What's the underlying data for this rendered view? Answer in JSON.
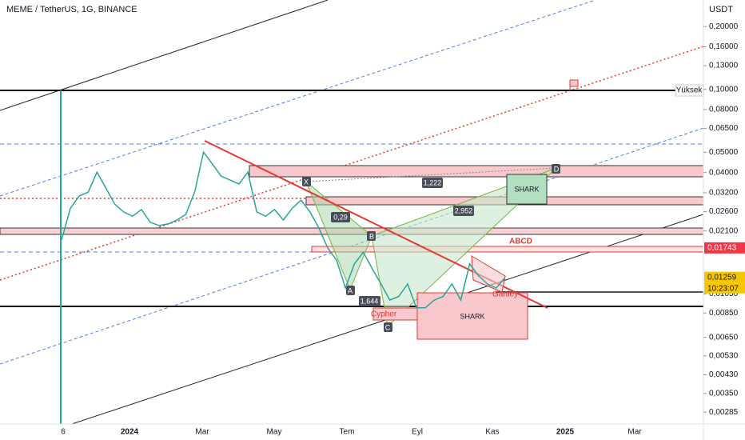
{
  "header": {
    "title": "MEME / TetherUS, 1G, BINANCE",
    "currency": "USDT"
  },
  "chart_data": {
    "type": "line",
    "log_scale": true,
    "ylim": [
      0.0025,
      0.268
    ],
    "yticks": [
      {
        "value": 0.2,
        "label": "0,20000"
      },
      {
        "value": 0.16,
        "label": "0,16000"
      },
      {
        "value": 0.13,
        "label": "0,13000"
      },
      {
        "value": 0.1,
        "label": "0,10000"
      },
      {
        "value": 0.08,
        "label": "0,08000"
      },
      {
        "value": 0.065,
        "label": "0,06500"
      },
      {
        "value": 0.05,
        "label": "0,05000"
      },
      {
        "value": 0.04,
        "label": "0,04000"
      },
      {
        "value": 0.032,
        "label": "0,03200"
      },
      {
        "value": 0.026,
        "label": "0,02600"
      },
      {
        "value": 0.021,
        "label": "0,02100"
      },
      {
        "value": 0.0105,
        "label": "0,01050"
      },
      {
        "value": 0.0085,
        "label": "0,00850"
      },
      {
        "value": 0.0065,
        "label": "0,00650"
      },
      {
        "value": 0.0053,
        "label": "0,00530"
      },
      {
        "value": 0.0043,
        "label": "0,00430"
      },
      {
        "value": 0.0035,
        "label": "0,00350"
      },
      {
        "value": 0.00285,
        "label": "0,00285"
      }
    ],
    "xtick_labels": [
      "6",
      "2024",
      "Mar",
      "May",
      "Tem",
      "Eyl",
      "Kas",
      "2025",
      "Mar"
    ],
    "series": [
      {
        "name": "MEME / TetherUS",
        "color": "#26a69a",
        "values": [
          0.019,
          0.027,
          0.0309,
          0.0322,
          0.0402,
          0.0337,
          0.0282,
          0.0259,
          0.0247,
          0.0266,
          0.0231,
          0.0223,
          0.0227,
          0.0237,
          0.0252,
          0.0322,
          0.0501,
          0.0439,
          0.0384,
          0.0368,
          0.0352,
          0.0402,
          0.0259,
          0.0247,
          0.0266,
          0.0237,
          0.027,
          0.0295,
          0.0259,
          0.0217,
          0.0174,
          0.0152,
          0.0112,
          0.0146,
          0.0166,
          0.0139,
          0.0117,
          0.0098,
          0.0102,
          0.0117,
          0.009,
          0.009,
          0.0098,
          0.0102,
          0.0117,
          0.0098,
          0.0146,
          0.0128,
          0.0117,
          0.0112,
          0.0126
        ]
      }
    ],
    "price_marks": [
      {
        "value": 0.01743,
        "label": "0,01743",
        "color": "#f23645"
      },
      {
        "value": 0.01259,
        "label": "0,01259",
        "color": "#f7c600"
      }
    ],
    "countdown": "10:23:07",
    "level_label": "Yüksek"
  },
  "annotations": {
    "abcd": "ABCD",
    "shark_1": "SHARK",
    "shark_2": "SHARK",
    "ratio_xd": "1,222",
    "ratio_bd": "2,952",
    "ratio_xab": "0,29",
    "ratio_abc": "1,644",
    "x": "X",
    "a": "A",
    "b": "B",
    "c": "C",
    "d": "D",
    "cypher": "Cypher",
    "gartley": "Gartley"
  }
}
